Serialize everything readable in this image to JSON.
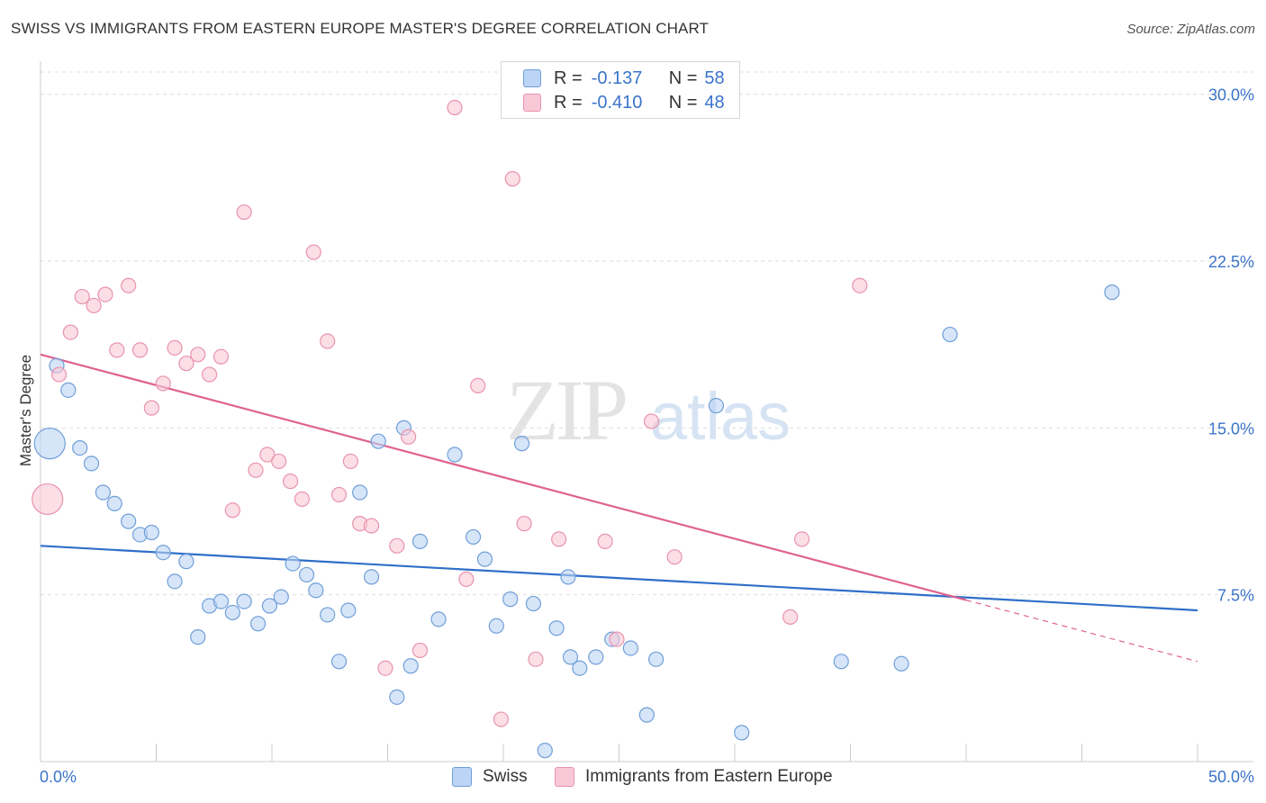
{
  "title": "SWISS VS IMMIGRANTS FROM EASTERN EUROPE MASTER'S DEGREE CORRELATION CHART",
  "source": "Source: ZipAtlas.com",
  "watermark": {
    "zip": "ZIP",
    "atlas": "atlas"
  },
  "legend": {
    "r_label": "R =",
    "n_label": "N =",
    "rows": [
      {
        "r": "-0.137",
        "n": "58"
      },
      {
        "r": "-0.410",
        "n": "48"
      }
    ]
  },
  "colors": {
    "swiss_fill": "#bcd4f5",
    "swiss_stroke": "#6f9fd8",
    "swiss_line": "#2f6fc9",
    "eeu_fill": "#f9c8d6",
    "eeu_stroke": "#e993ae",
    "eeu_line": "#e0628e",
    "tick_label": "#3b74c9",
    "grid": "#dddddd"
  },
  "chart_data": {
    "type": "scatter",
    "title": "SWISS VS IMMIGRANTS FROM EASTERN EUROPE MASTER'S DEGREE CORRELATION CHART",
    "xlabel": "",
    "ylabel": "Master's Degree",
    "xlim": [
      0,
      50
    ],
    "ylim": [
      0,
      31
    ],
    "x_tick_labels": [
      "0.0%",
      "50.0%"
    ],
    "y_ticks": [
      7.5,
      15.0,
      22.5,
      30.0
    ],
    "y_tick_labels": [
      "7.5%",
      "15.0%",
      "22.5%",
      "30.0%"
    ],
    "series": [
      {
        "name": "Swiss",
        "r": -0.137,
        "n": 58,
        "trend": {
          "x": [
            0,
            50
          ],
          "y": [
            9.7,
            6.8
          ],
          "dash_from": null
        },
        "points": [
          [
            0.4,
            14.3,
            "big"
          ],
          [
            0.7,
            17.8
          ],
          [
            1.2,
            16.7
          ],
          [
            1.7,
            14.1
          ],
          [
            2.2,
            13.4
          ],
          [
            2.7,
            12.1
          ],
          [
            3.2,
            11.6
          ],
          [
            3.8,
            10.8
          ],
          [
            4.3,
            10.2
          ],
          [
            4.8,
            10.3
          ],
          [
            5.3,
            9.4
          ],
          [
            5.8,
            8.1
          ],
          [
            6.3,
            9.0
          ],
          [
            6.8,
            5.6
          ],
          [
            7.3,
            7.0
          ],
          [
            7.8,
            7.2
          ],
          [
            8.3,
            6.7
          ],
          [
            8.8,
            7.2
          ],
          [
            9.4,
            6.2
          ],
          [
            9.9,
            7.0
          ],
          [
            10.4,
            7.4
          ],
          [
            10.9,
            8.9
          ],
          [
            11.5,
            8.4
          ],
          [
            11.9,
            7.7
          ],
          [
            12.4,
            6.6
          ],
          [
            12.9,
            4.5
          ],
          [
            13.3,
            6.8
          ],
          [
            13.8,
            12.1
          ],
          [
            14.3,
            8.3
          ],
          [
            14.6,
            14.4
          ],
          [
            15.4,
            2.9
          ],
          [
            15.7,
            15.0
          ],
          [
            16.0,
            4.3
          ],
          [
            16.4,
            9.9
          ],
          [
            17.2,
            6.4
          ],
          [
            17.9,
            13.8
          ],
          [
            18.7,
            10.1
          ],
          [
            19.2,
            9.1
          ],
          [
            19.7,
            6.1
          ],
          [
            20.3,
            7.3
          ],
          [
            20.8,
            14.3
          ],
          [
            21.3,
            7.1
          ],
          [
            21.8,
            0.5
          ],
          [
            22.3,
            6.0
          ],
          [
            22.8,
            8.3
          ],
          [
            22.9,
            4.7
          ],
          [
            23.3,
            4.2
          ],
          [
            24.0,
            4.7
          ],
          [
            24.7,
            5.5
          ],
          [
            25.5,
            5.1
          ],
          [
            26.2,
            2.1
          ],
          [
            26.6,
            4.6
          ],
          [
            29.2,
            16.0
          ],
          [
            30.3,
            1.3
          ],
          [
            34.6,
            4.5
          ],
          [
            37.2,
            4.4
          ],
          [
            39.3,
            19.2
          ],
          [
            46.3,
            21.1
          ]
        ]
      },
      {
        "name": "Immigrants from Eastern Europe",
        "r": -0.41,
        "n": 48,
        "trend": {
          "x": [
            0,
            50
          ],
          "y": [
            18.3,
            4.5
          ],
          "dash_from": 40.0
        },
        "points": [
          [
            0.3,
            11.8,
            "big"
          ],
          [
            0.8,
            17.4
          ],
          [
            1.3,
            19.3
          ],
          [
            1.8,
            20.9
          ],
          [
            2.3,
            20.5
          ],
          [
            2.8,
            21.0
          ],
          [
            3.3,
            18.5
          ],
          [
            3.8,
            21.4
          ],
          [
            4.3,
            18.5
          ],
          [
            4.8,
            15.9
          ],
          [
            5.3,
            17.0
          ],
          [
            5.8,
            18.6
          ],
          [
            6.3,
            17.9
          ],
          [
            6.8,
            18.3
          ],
          [
            7.3,
            17.4
          ],
          [
            7.8,
            18.2
          ],
          [
            8.3,
            11.3
          ],
          [
            8.8,
            24.7
          ],
          [
            9.3,
            13.1
          ],
          [
            9.8,
            13.8
          ],
          [
            10.3,
            13.5
          ],
          [
            10.8,
            12.6
          ],
          [
            11.3,
            11.8
          ],
          [
            11.8,
            22.9
          ],
          [
            12.4,
            18.9
          ],
          [
            12.9,
            12.0
          ],
          [
            13.4,
            13.5
          ],
          [
            13.8,
            10.7
          ],
          [
            14.3,
            10.6
          ],
          [
            14.9,
            4.2
          ],
          [
            15.4,
            9.7
          ],
          [
            15.9,
            14.6
          ],
          [
            16.4,
            5.0
          ],
          [
            17.9,
            29.4
          ],
          [
            18.4,
            8.2
          ],
          [
            18.9,
            16.9
          ],
          [
            19.9,
            1.9
          ],
          [
            20.4,
            26.2
          ],
          [
            20.9,
            10.7
          ],
          [
            21.4,
            4.6
          ],
          [
            22.4,
            10.0
          ],
          [
            24.4,
            9.9
          ],
          [
            24.9,
            5.5
          ],
          [
            26.4,
            15.3
          ],
          [
            27.4,
            9.2
          ],
          [
            32.4,
            6.5
          ],
          [
            32.9,
            10.0
          ],
          [
            35.4,
            21.4
          ]
        ]
      }
    ]
  },
  "bottom_legend": {
    "swiss": "Swiss",
    "eeu": "Immigrants from Eastern Europe"
  }
}
